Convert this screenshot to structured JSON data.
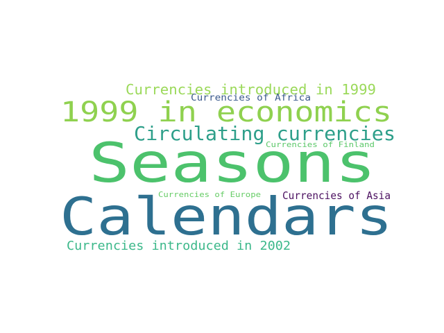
{
  "words": [
    {
      "text": "Seasons",
      "color": "#4cc26c"
    },
    {
      "text": "Calendars",
      "color": "#2e7090"
    },
    {
      "text": "1999 in economics",
      "color": "#8fd14f"
    },
    {
      "text": "Circulating currencies",
      "color": "#2e9f8a"
    },
    {
      "text": "Currencies introduced in 1999",
      "color": "#9bd95a"
    },
    {
      "text": "Currencies introduced in 2002",
      "color": "#3cb88a"
    },
    {
      "text": "Currencies of Africa",
      "color": "#3b5a8c"
    },
    {
      "text": "Currencies of Finland",
      "color": "#5cc86a"
    },
    {
      "text": "Currencies of Asia",
      "color": "#4b1060"
    },
    {
      "text": "Currencies of Europe",
      "color": "#66cc66"
    }
  ]
}
